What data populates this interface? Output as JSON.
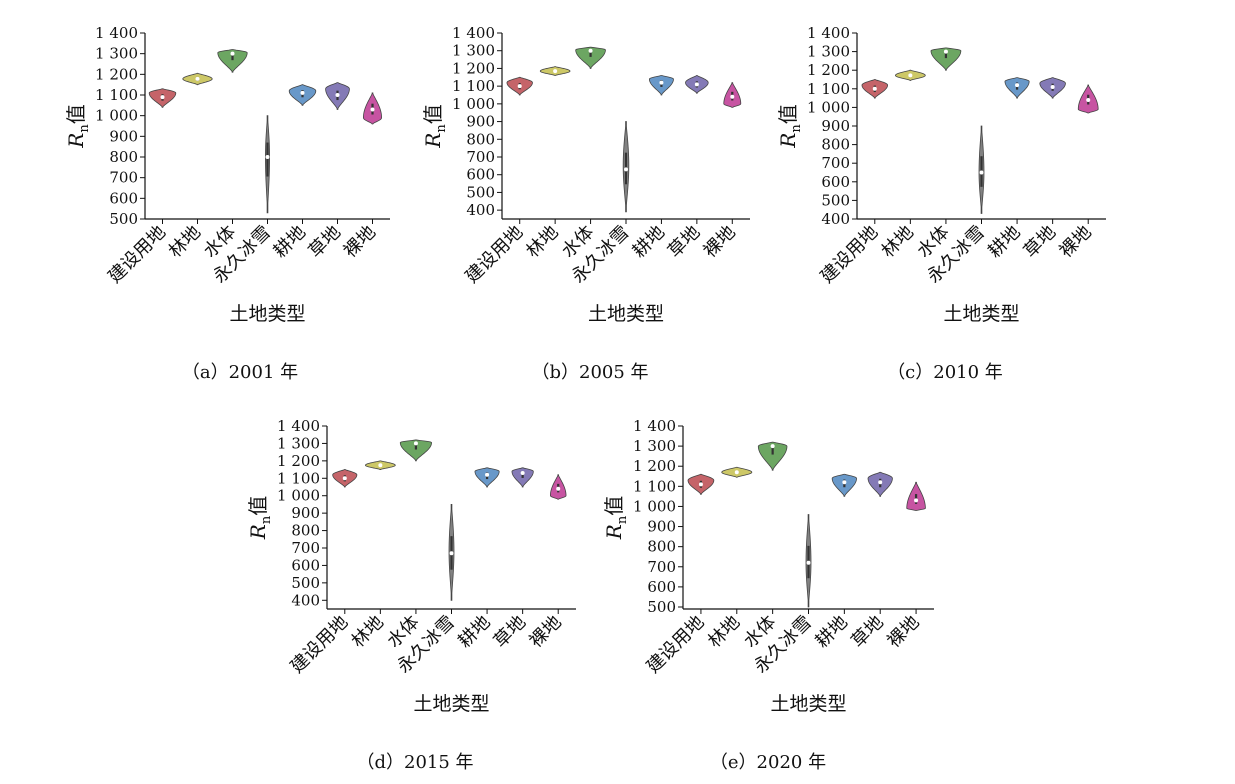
{
  "colors": {
    "建设用地": "#c0575c",
    "林地": "#c9c35a",
    "水体": "#5f9e55",
    "永久冰雪": "#777777",
    "耕地": "#5b8fc4",
    "草地": "#7a6fb0",
    "裸地": "#c2459a"
  },
  "chart_data": [
    {
      "type": "violin",
      "caption": "（a）2001 年",
      "xlabel": "土地类型",
      "ylabel_main": "R",
      "ylabel_sub": "n",
      "ylabel_tail": "值",
      "ylim": [
        500,
        1400
      ],
      "ticks": [
        500,
        600,
        700,
        800,
        900,
        1000,
        1100,
        1200,
        1300,
        1400
      ],
      "tick_labels": [
        "500",
        "600",
        "700",
        "800",
        "900",
        "1 000",
        "1 100",
        "1 200",
        "1 300",
        "1 400"
      ],
      "categories": [
        "建设用地",
        "林地",
        "水体",
        "永久冰雪",
        "耕地",
        "草地",
        "裸地"
      ],
      "violins": [
        {
          "min": 1040,
          "max": 1130,
          "median": 1090,
          "peak": 1110,
          "width": 0.38
        },
        {
          "min": 1150,
          "max": 1205,
          "median": 1178,
          "peak": 1178,
          "width": 0.42
        },
        {
          "min": 1210,
          "max": 1320,
          "median": 1300,
          "peak": 1305,
          "width": 0.42
        },
        {
          "min": 530,
          "max": 1000,
          "median": 800,
          "peak": 800,
          "width": 0.06
        },
        {
          "min": 1050,
          "max": 1150,
          "median": 1110,
          "peak": 1120,
          "width": 0.38
        },
        {
          "min": 1030,
          "max": 1160,
          "median": 1100,
          "peak": 1130,
          "width": 0.34
        },
        {
          "min": 960,
          "max": 1110,
          "median": 1030,
          "peak": 990,
          "width": 0.26
        }
      ]
    },
    {
      "type": "violin",
      "caption": "（b）2005 年",
      "xlabel": "土地类型",
      "ylabel_main": "R",
      "ylabel_sub": "n",
      "ylabel_tail": "值",
      "ylim": [
        350,
        1400
      ],
      "ticks": [
        400,
        500,
        600,
        700,
        800,
        900,
        1000,
        1100,
        1200,
        1300,
        1400
      ],
      "tick_labels": [
        "400",
        "500",
        "600",
        "700",
        "800",
        "900",
        "1 000",
        "1 100",
        "1 200",
        "1 300",
        "1 400"
      ],
      "categories": [
        "建设用地",
        "林地",
        "水体",
        "永久冰雪",
        "耕地",
        "草地",
        "裸地"
      ],
      "violins": [
        {
          "min": 1050,
          "max": 1150,
          "median": 1100,
          "peak": 1120,
          "width": 0.36
        },
        {
          "min": 1160,
          "max": 1210,
          "median": 1185,
          "peak": 1185,
          "width": 0.42
        },
        {
          "min": 1200,
          "max": 1320,
          "median": 1300,
          "peak": 1305,
          "width": 0.42
        },
        {
          "min": 390,
          "max": 900,
          "median": 630,
          "peak": 650,
          "width": 0.08
        },
        {
          "min": 1050,
          "max": 1160,
          "median": 1120,
          "peak": 1140,
          "width": 0.34
        },
        {
          "min": 1060,
          "max": 1160,
          "median": 1110,
          "peak": 1120,
          "width": 0.32
        },
        {
          "min": 980,
          "max": 1120,
          "median": 1040,
          "peak": 1000,
          "width": 0.24
        }
      ]
    },
    {
      "type": "violin",
      "caption": "（c）2010 年",
      "xlabel": "土地类型",
      "ylabel_main": "R",
      "ylabel_sub": "n",
      "ylabel_tail": "值",
      "ylim": [
        400,
        1400
      ],
      "ticks": [
        400,
        500,
        600,
        700,
        800,
        900,
        1000,
        1100,
        1200,
        1300,
        1400
      ],
      "tick_labels": [
        "400",
        "500",
        "600",
        "700",
        "800",
        "900",
        "1 000",
        "1 100",
        "1 200",
        "1 300",
        "1 400"
      ],
      "categories": [
        "建设用地",
        "林地",
        "水体",
        "永久冰雪",
        "耕地",
        "草地",
        "裸地"
      ],
      "violins": [
        {
          "min": 1050,
          "max": 1150,
          "median": 1100,
          "peak": 1120,
          "width": 0.36
        },
        {
          "min": 1145,
          "max": 1200,
          "median": 1172,
          "peak": 1172,
          "width": 0.42
        },
        {
          "min": 1200,
          "max": 1320,
          "median": 1300,
          "peak": 1305,
          "width": 0.42
        },
        {
          "min": 430,
          "max": 900,
          "median": 650,
          "peak": 650,
          "width": 0.07
        },
        {
          "min": 1050,
          "max": 1160,
          "median": 1120,
          "peak": 1140,
          "width": 0.34
        },
        {
          "min": 1050,
          "max": 1160,
          "median": 1110,
          "peak": 1130,
          "width": 0.36
        },
        {
          "min": 970,
          "max": 1120,
          "median": 1040,
          "peak": 990,
          "width": 0.28
        }
      ]
    },
    {
      "type": "violin",
      "caption": "（d）2015 年",
      "xlabel": "土地类型",
      "ylabel_main": "R",
      "ylabel_sub": "n",
      "ylabel_tail": "值",
      "ylim": [
        350,
        1400
      ],
      "ticks": [
        400,
        500,
        600,
        700,
        800,
        900,
        1000,
        1100,
        1200,
        1300,
        1400
      ],
      "tick_labels": [
        "400",
        "500",
        "600",
        "700",
        "800",
        "900",
        "1 000",
        "1 100",
        "1 200",
        "1 300",
        "1 400"
      ],
      "categories": [
        "建设用地",
        "林地",
        "水体",
        "永久冰雪",
        "耕地",
        "草地",
        "裸地"
      ],
      "violins": [
        {
          "min": 1050,
          "max": 1150,
          "median": 1100,
          "peak": 1120,
          "width": 0.34
        },
        {
          "min": 1150,
          "max": 1200,
          "median": 1175,
          "peak": 1175,
          "width": 0.42
        },
        {
          "min": 1200,
          "max": 1320,
          "median": 1300,
          "peak": 1305,
          "width": 0.44
        },
        {
          "min": 400,
          "max": 950,
          "median": 670,
          "peak": 680,
          "width": 0.07
        },
        {
          "min": 1050,
          "max": 1160,
          "median": 1120,
          "peak": 1140,
          "width": 0.34
        },
        {
          "min": 1050,
          "max": 1160,
          "median": 1130,
          "peak": 1140,
          "width": 0.3
        },
        {
          "min": 980,
          "max": 1120,
          "median": 1040,
          "peak": 1000,
          "width": 0.22
        }
      ]
    },
    {
      "type": "violin",
      "caption": "（e）2020 年",
      "xlabel": "土地类型",
      "ylabel_main": "R",
      "ylabel_sub": "n",
      "ylabel_tail": "值",
      "ylim": [
        490,
        1400
      ],
      "ticks": [
        500,
        600,
        700,
        800,
        900,
        1000,
        1100,
        1200,
        1300,
        1400
      ],
      "tick_labels": [
        "500",
        "600",
        "700",
        "800",
        "900",
        "1 000",
        "1 100",
        "1 200",
        "1 300",
        "1 400"
      ],
      "categories": [
        "建设用地",
        "林地",
        "水体",
        "永久冰雪",
        "耕地",
        "草地",
        "裸地"
      ],
      "violins": [
        {
          "min": 1060,
          "max": 1160,
          "median": 1110,
          "peak": 1130,
          "width": 0.36
        },
        {
          "min": 1145,
          "max": 1195,
          "median": 1170,
          "peak": 1170,
          "width": 0.42
        },
        {
          "min": 1180,
          "max": 1320,
          "median": 1300,
          "peak": 1300,
          "width": 0.4
        },
        {
          "min": 500,
          "max": 960,
          "median": 720,
          "peak": 720,
          "width": 0.07
        },
        {
          "min": 1050,
          "max": 1160,
          "median": 1120,
          "peak": 1140,
          "width": 0.34
        },
        {
          "min": 1050,
          "max": 1170,
          "median": 1120,
          "peak": 1140,
          "width": 0.34
        },
        {
          "min": 980,
          "max": 1120,
          "median": 1030,
          "peak": 990,
          "width": 0.26
        }
      ]
    }
  ]
}
